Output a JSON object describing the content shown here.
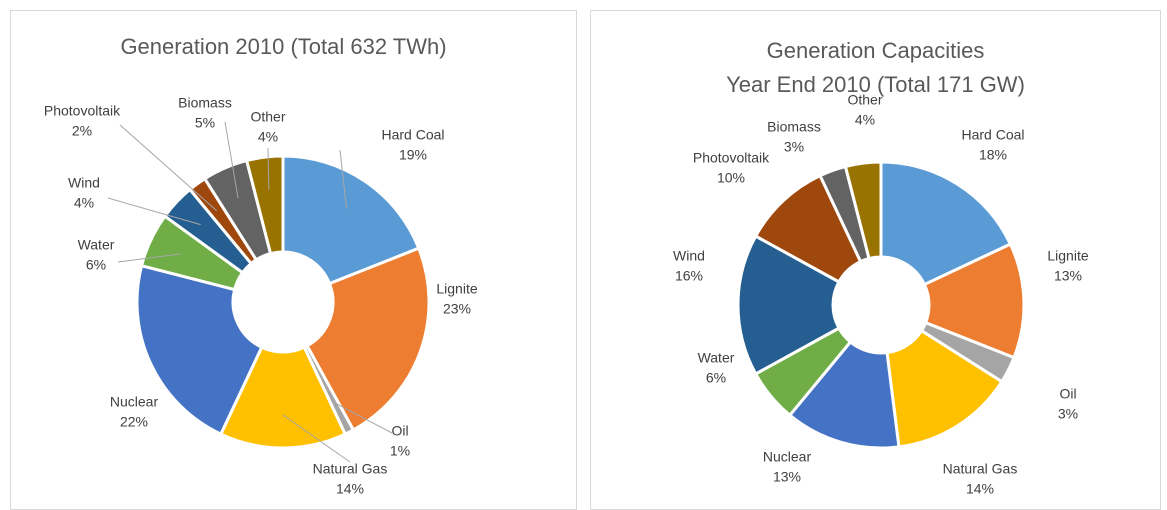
{
  "chart_data": [
    {
      "type": "donut",
      "title": "Generation 2010 (Total 632 TWh)",
      "categories": [
        "Hard Coal",
        "Lignite",
        "Oil",
        "Natural Gas",
        "Nuclear",
        "Water",
        "Wind",
        "Photovoltaik",
        "Biomass",
        "Other"
      ],
      "values": [
        19,
        23,
        1,
        14,
        22,
        6,
        4,
        2,
        5,
        4
      ],
      "value_labels": [
        "19%",
        "23%",
        "1%",
        "14%",
        "22%",
        "6%",
        "4%",
        "2%",
        "5%",
        "4%"
      ],
      "colors": [
        "#5b9bd5",
        "#ed7d31",
        "#a5a5a5",
        "#ffc000",
        "#4472c4",
        "#70ad47",
        "#255e91",
        "#9e480e",
        "#636363",
        "#997300"
      ]
    },
    {
      "type": "donut",
      "title": "Generation Capacities\nYear End 2010 (Total 171 GW)",
      "categories": [
        "Hard Coal",
        "Lignite",
        "Oil",
        "Natural Gas",
        "Nuclear",
        "Water",
        "Wind",
        "Photovoltaik",
        "Biomass",
        "Other"
      ],
      "values": [
        18,
        13,
        3,
        14,
        13,
        6,
        16,
        10,
        3,
        4
      ],
      "value_labels": [
        "18%",
        "13%",
        "3%",
        "14%",
        "13%",
        "6%",
        "16%",
        "10%",
        "3%",
        "4%"
      ],
      "colors": [
        "#5b9bd5",
        "#ed7d31",
        "#a5a5a5",
        "#ffc000",
        "#4472c4",
        "#70ad47",
        "#255e91",
        "#9e480e",
        "#636363",
        "#997300"
      ]
    }
  ]
}
